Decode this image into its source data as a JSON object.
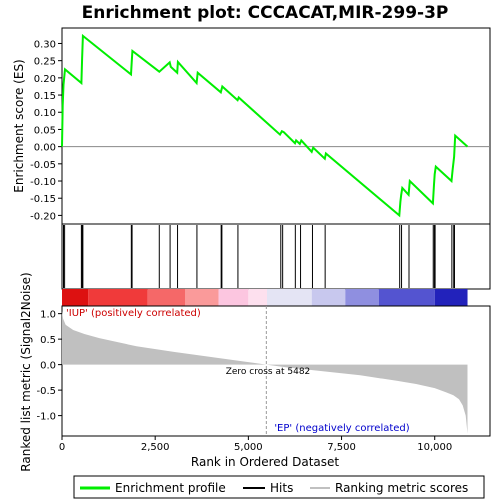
{
  "chart_data": {
    "type": "line",
    "title": "Enrichment plot: CCCACAT,MIR-299-3P",
    "es_panel": {
      "ylabel": "Enrichment score (ES)",
      "ylim": [
        -0.225,
        0.345
      ],
      "yticks": [
        0.3,
        0.25,
        0.2,
        0.15,
        0.1,
        0.05,
        0.0,
        -0.05,
        -0.1,
        -0.15,
        -0.2
      ],
      "ytick_labels": [
        "0.30",
        "0.25",
        "0.20",
        "0.15",
        "0.10",
        "0.05",
        "0.00",
        "-0.05",
        "-0.10",
        "-0.15",
        "-0.20"
      ],
      "x": [
        0,
        20,
        40,
        80,
        520,
        540,
        560,
        1850,
        1870,
        1890,
        2610,
        2890,
        2920,
        3090,
        3110,
        3610,
        3640,
        4260,
        4280,
        4300,
        4710,
        4740,
        5850,
        5900,
        5950,
        6250,
        6280,
        6380,
        6420,
        6700,
        6740,
        7050,
        7080,
        9050,
        9080,
        9100,
        9130,
        9300,
        9330,
        9950,
        9980,
        10000,
        10030,
        10450,
        10480,
        10520,
        10550,
        10880
      ],
      "y": [
        0.0,
        0.12,
        0.18,
        0.225,
        0.185,
        0.255,
        0.322,
        0.21,
        0.245,
        0.278,
        0.218,
        0.245,
        0.232,
        0.215,
        0.246,
        0.185,
        0.215,
        0.158,
        0.166,
        0.175,
        0.135,
        0.143,
        0.035,
        0.045,
        0.042,
        0.01,
        0.018,
        0.008,
        0.018,
        -0.015,
        -0.003,
        -0.035,
        -0.02,
        -0.2,
        -0.16,
        -0.14,
        -0.12,
        -0.14,
        -0.1,
        -0.165,
        -0.11,
        -0.08,
        -0.058,
        -0.1,
        -0.068,
        -0.03,
        0.032,
        0.0
      ],
      "series_color": "#00ee00"
    },
    "hits": [
      40,
      70,
      520,
      540,
      560,
      1860,
      1880,
      2610,
      2900,
      3100,
      3620,
      4270,
      4290,
      4720,
      5870,
      5920,
      6260,
      6400,
      6720,
      7060,
      9060,
      9110,
      9310,
      9960,
      9990,
      10010,
      10460,
      10510,
      10530
    ],
    "ranked_panel": {
      "ylabel": "Ranked list metric (Signal2Noise)",
      "xlabel": "Rank in Ordered Dataset",
      "ylim": [
        -1.4,
        1.15
      ],
      "yticks": [
        1.0,
        0.5,
        0.0,
        -0.5,
        -1.0
      ],
      "ytick_labels": [
        "1.0",
        "0.5",
        "0.0",
        "-0.5",
        "-1.0"
      ],
      "xlim": [
        0,
        11000
      ],
      "xticks": [
        0,
        2500,
        5000,
        7500,
        10000
      ],
      "xtick_labels": [
        "0",
        "2,500",
        "5,000",
        "7,500",
        "10,000"
      ],
      "x": [
        0,
        30,
        100,
        300,
        600,
        1000,
        2000,
        3000,
        4000,
        5000,
        5482,
        6000,
        7000,
        8000,
        9000,
        9500,
        10000,
        10300,
        10500,
        10650,
        10750,
        10830,
        10880
      ],
      "y": [
        1.05,
        0.9,
        0.78,
        0.68,
        0.6,
        0.52,
        0.36,
        0.25,
        0.15,
        0.05,
        0.0,
        -0.05,
        -0.13,
        -0.21,
        -0.32,
        -0.38,
        -0.46,
        -0.54,
        -0.6,
        -0.68,
        -0.8,
        -1.0,
        -1.35
      ],
      "fill_color": "#c0c0c0",
      "zero_cross_label": "Zero cross at 5482",
      "zero_cross": 5482,
      "pos_label": "'IUP' (positively correlated)",
      "neg_label": "'EP' (negatively correlated)"
    },
    "n_genes": 10880,
    "legend": {
      "placement": "bottom",
      "items": [
        {
          "label": "Enrichment profile",
          "color": "#00ee00"
        },
        {
          "label": "Hits",
          "color": "#000000"
        },
        {
          "label": "Ranking metric scores",
          "color": "#c0c0c0"
        }
      ]
    }
  }
}
